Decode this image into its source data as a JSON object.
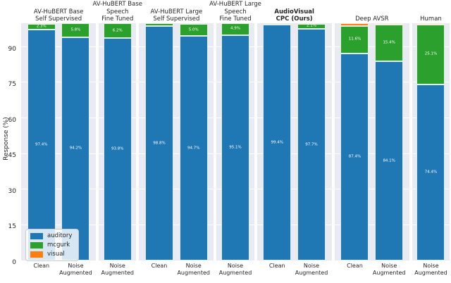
{
  "figure": {
    "ylabel": "Response (%)",
    "colors": {
      "auditory": "#1f77b4",
      "mcgurk": "#2ca02c",
      "visual": "#ff7f0e",
      "panel_bg": "#eaeaf2",
      "grid": "#ffffff",
      "text": "#262626"
    },
    "legend": {
      "position": "lower left",
      "items": [
        {
          "key": "auditory",
          "label": "auditory",
          "color": "#1f77b4"
        },
        {
          "key": "mcgurk",
          "label": "mcgurk",
          "color": "#2ca02c"
        },
        {
          "key": "visual",
          "label": "visual",
          "color": "#ff7f0e"
        }
      ]
    }
  },
  "chart_data": {
    "type": "bar",
    "stacked": true,
    "ylabel": "Response (%)",
    "ylim": [
      0,
      100
    ],
    "yticks": [
      0,
      15,
      30,
      45,
      60,
      75,
      90
    ],
    "grid": true,
    "legend_position": "lower left",
    "series_order": [
      "auditory",
      "mcgurk",
      "visual"
    ],
    "label_suffix": "%",
    "groups": [
      {
        "title_lines": [
          "AV-HuBERT Base",
          "Self Supervised"
        ],
        "bold": false,
        "bars": [
          {
            "condition": "Clean",
            "condition_lines": [
              "Clean"
            ],
            "values": {
              "auditory": 97.4,
              "mcgurk": 2.3,
              "visual": 0.3
            }
          },
          {
            "condition": "Noise Augmented",
            "condition_lines": [
              "Noise",
              "Augmented"
            ],
            "values": {
              "auditory": 94.2,
              "mcgurk": 5.8,
              "visual": 0
            }
          }
        ]
      },
      {
        "title_lines": [
          "AV-HuBERT Base",
          "Speech",
          "Fine Tuned"
        ],
        "bold": false,
        "bars": [
          {
            "condition": "Noise Augmented",
            "condition_lines": [
              "Noise",
              "Augmented"
            ],
            "values": {
              "auditory": 93.8,
              "mcgurk": 6.2,
              "visual": 0
            }
          }
        ]
      },
      {
        "title_lines": [
          "AV-HuBERT Large",
          "Self Supervised"
        ],
        "bold": false,
        "bars": [
          {
            "condition": "Clean",
            "condition_lines": [
              "Clean"
            ],
            "values": {
              "auditory": 98.8,
              "mcgurk": 1.2,
              "visual": 0
            }
          },
          {
            "condition": "Noise Augmented",
            "condition_lines": [
              "Noise",
              "Augmented"
            ],
            "values": {
              "auditory": 94.7,
              "mcgurk": 5.0,
              "visual": 0
            }
          }
        ]
      },
      {
        "title_lines": [
          "AV-HuBERT Large",
          "Speech",
          "Fine Tuned"
        ],
        "bold": false,
        "bars": [
          {
            "condition": "Noise Augmented",
            "condition_lines": [
              "Noise",
              "Augmented"
            ],
            "values": {
              "auditory": 95.1,
              "mcgurk": 4.9,
              "visual": 0
            }
          }
        ]
      },
      {
        "title_lines": [
          "AudioVisual",
          "CPC (Ours)"
        ],
        "bold": true,
        "bars": [
          {
            "condition": "Clean",
            "condition_lines": [
              "Clean"
            ],
            "values": {
              "auditory": 99.4,
              "mcgurk": 0.6,
              "visual": 0
            }
          },
          {
            "condition": "Noise Augmented",
            "condition_lines": [
              "Noise",
              "Augmented"
            ],
            "values": {
              "auditory": 97.7,
              "mcgurk": 2.1,
              "visual": 0
            }
          }
        ]
      },
      {
        "title_lines": [
          "Deep AVSR"
        ],
        "bold": false,
        "bars": [
          {
            "condition": "Clean",
            "condition_lines": [
              "Clean"
            ],
            "values": {
              "auditory": 87.4,
              "mcgurk": 11.6,
              "visual": 1.0
            }
          },
          {
            "condition": "Noise Augmented",
            "condition_lines": [
              "Noise",
              "Augmented"
            ],
            "values": {
              "auditory": 84.1,
              "mcgurk": 15.4,
              "visual": 0.5
            }
          }
        ]
      },
      {
        "title_lines": [
          "Human"
        ],
        "bold": false,
        "bars": [
          {
            "condition": "Noise Augmented",
            "condition_lines": [
              "Noise",
              "Augmented"
            ],
            "values": {
              "auditory": 74.4,
              "mcgurk": 25.1,
              "visual": 0.5
            }
          }
        ]
      }
    ]
  }
}
